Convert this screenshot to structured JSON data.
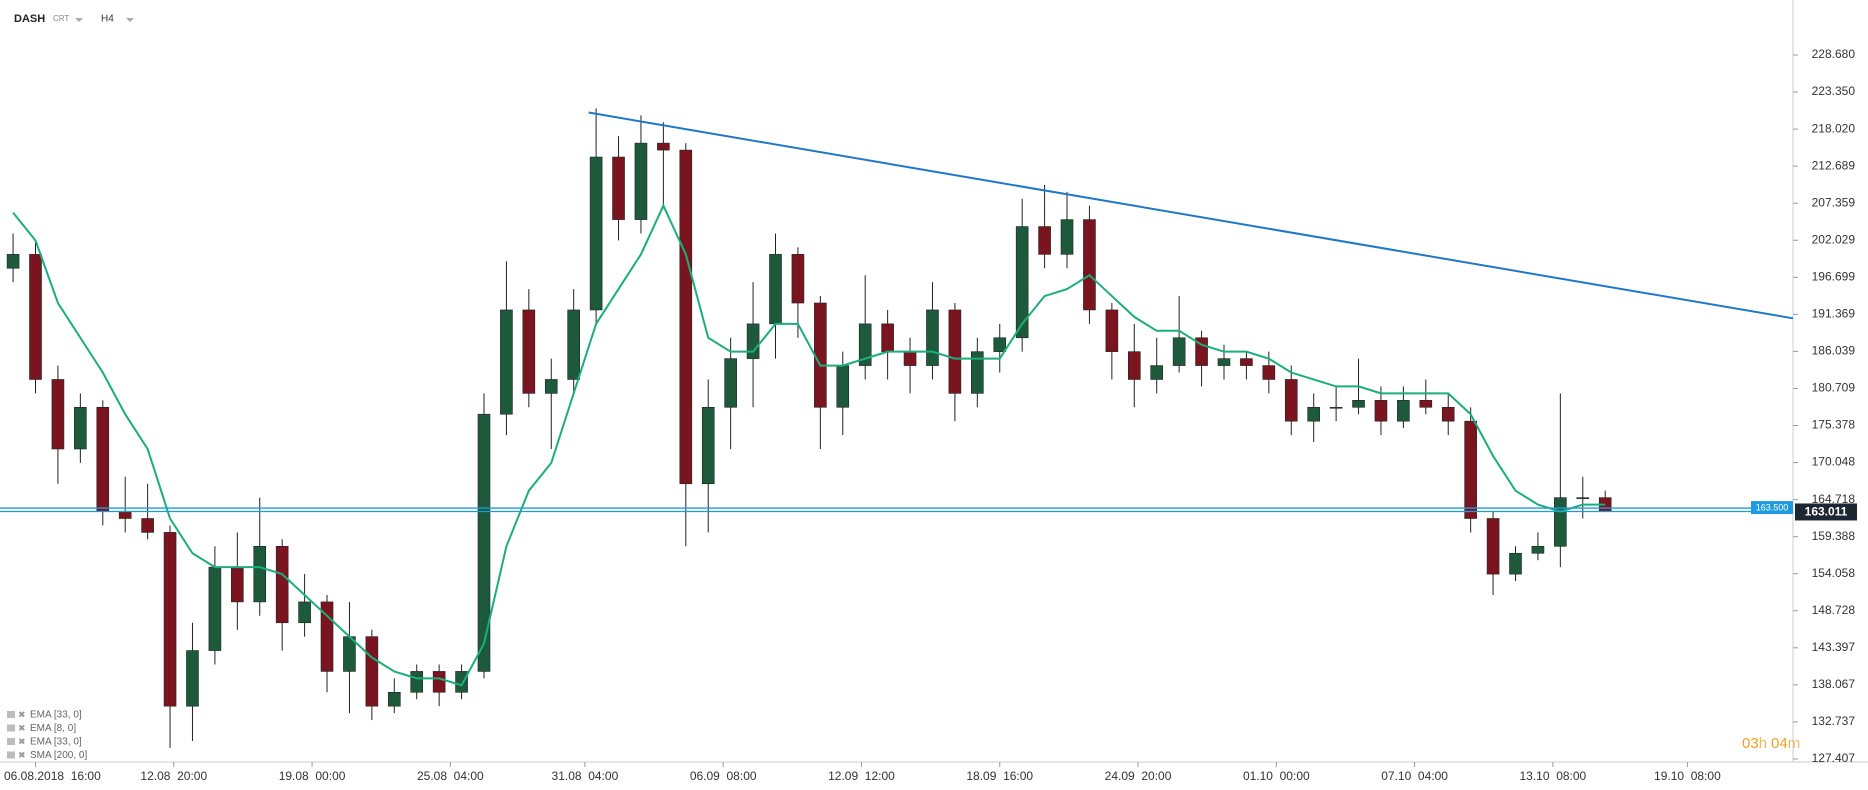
{
  "header": {
    "symbol": "DASH",
    "source": "CRT",
    "timeframe": "H4"
  },
  "chart_data": {
    "type": "candlestick",
    "x": [
      -24,
      0,
      24,
      48,
      72,
      96,
      120,
      144,
      168,
      192,
      216,
      240,
      264,
      288,
      312,
      336,
      360,
      384,
      408,
      432,
      456,
      480,
      504,
      528,
      552,
      576,
      600,
      624,
      648,
      672,
      696,
      720,
      744,
      768,
      792,
      816,
      840,
      864,
      888,
      912,
      936,
      960,
      984,
      1008,
      1032,
      1056,
      1080,
      1104,
      1128,
      1152,
      1176,
      1200,
      1224,
      1248,
      1272,
      1296,
      1320,
      1344,
      1368,
      1392,
      1416,
      1440,
      1464,
      1488,
      1512,
      1536,
      1560,
      1584,
      1608,
      1632,
      1656,
      1680
    ],
    "open": [
      198,
      200,
      182,
      172,
      178,
      163,
      162,
      160,
      135,
      143,
      155,
      150,
      158,
      147,
      150,
      140,
      145,
      135,
      137,
      140,
      137,
      140,
      177,
      192,
      180,
      182,
      192,
      214,
      205,
      216,
      215,
      167,
      178,
      185,
      190,
      200,
      193,
      178,
      184,
      190,
      186,
      184,
      192,
      180,
      186,
      188,
      204,
      200,
      205,
      192,
      186,
      182,
      184,
      188,
      184,
      185,
      184,
      182,
      176,
      178,
      178,
      179,
      176,
      179,
      178,
      176,
      162,
      154,
      157,
      158,
      165,
      165
    ],
    "high": [
      203,
      202,
      184,
      180,
      179,
      168,
      167,
      161,
      147,
      158,
      160,
      165,
      159,
      154,
      151,
      150,
      146,
      139,
      141,
      141,
      141,
      180,
      199,
      195,
      185,
      195,
      221,
      217,
      220,
      219,
      216,
      182,
      188,
      196,
      203,
      201,
      194,
      186,
      197,
      192,
      188,
      196,
      193,
      188,
      190,
      208,
      210,
      209,
      207,
      193,
      190,
      188,
      194,
      189,
      187,
      186,
      186,
      184,
      180,
      181,
      185,
      181,
      181,
      182,
      180,
      178,
      163,
      158,
      160,
      180,
      168,
      166
    ],
    "low": [
      196,
      180,
      167,
      170,
      161,
      160,
      159,
      129,
      130,
      141,
      146,
      148,
      143,
      145,
      137,
      134,
      133,
      134,
      136,
      135,
      136,
      139,
      174,
      178,
      172,
      180,
      190,
      202,
      203,
      207,
      158,
      160,
      172,
      178,
      185,
      188,
      172,
      174,
      182,
      182,
      180,
      182,
      176,
      178,
      183,
      186,
      198,
      198,
      190,
      182,
      178,
      180,
      183,
      181,
      182,
      182,
      180,
      174,
      173,
      176,
      177,
      174,
      175,
      177,
      174,
      160,
      151,
      153,
      156,
      155,
      162,
      163
    ],
    "close": [
      200,
      182,
      172,
      178,
      163,
      162,
      160,
      135,
      143,
      155,
      150,
      158,
      147,
      150,
      140,
      145,
      135,
      137,
      140,
      137,
      140,
      177,
      192,
      180,
      182,
      192,
      214,
      205,
      216,
      215,
      167,
      178,
      185,
      190,
      200,
      193,
      178,
      184,
      190,
      186,
      184,
      192,
      180,
      186,
      188,
      204,
      200,
      205,
      192,
      186,
      182,
      184,
      188,
      184,
      185,
      184,
      182,
      176,
      178,
      178,
      179,
      176,
      179,
      178,
      176,
      162,
      154,
      157,
      158,
      165,
      165,
      163.011
    ],
    "up_color": "#1d5a3c",
    "down_color": "#7a1520",
    "ema": {
      "color": "#1aaf7a",
      "values": [
        206,
        202,
        193,
        188,
        183,
        177,
        172,
        162,
        157,
        155,
        155,
        155,
        154,
        151,
        148,
        145,
        142,
        140,
        139,
        139,
        138,
        144,
        158,
        166,
        170,
        180,
        190,
        195,
        200,
        207,
        200,
        188,
        186,
        186,
        190,
        190,
        184,
        184,
        185,
        186,
        186,
        186,
        185,
        185,
        185,
        190,
        194,
        195,
        197,
        194,
        191,
        189,
        189,
        187,
        186,
        186,
        185,
        183,
        182,
        181,
        181,
        180,
        180,
        180,
        180,
        177,
        171,
        166,
        164,
        163,
        164,
        164
      ]
    },
    "trendline": {
      "color": "#1e78c8",
      "x": [
        592,
        1881
      ],
      "y": [
        220.4,
        190.8
      ]
    },
    "price_level": {
      "value": 163.5,
      "label": "163.500",
      "color": "#1e9be0"
    },
    "last_price": {
      "value": 163.011,
      "label": "163.011"
    },
    "indicators": [
      "EMA [33, 0]",
      "EMA [8, 0]",
      "EMA [33, 0]",
      "SMA [200, 0]"
    ],
    "countdown": [
      "03",
      "h",
      "04",
      "m"
    ],
    "xlim": [
      -38,
      1881
    ],
    "xticks": [
      {
        "value": 0,
        "label": "06.08.2018  16:00"
      },
      {
        "value": 148,
        "label": "12.08  20:00"
      },
      {
        "value": 296,
        "label": "19.08  00:00"
      },
      {
        "value": 444,
        "label": "25.08  04:00"
      },
      {
        "value": 588,
        "label": "31.08  04:00"
      },
      {
        "value": 736,
        "label": "06.09  08:00"
      },
      {
        "value": 884,
        "label": "12.09  12:00"
      },
      {
        "value": 1032,
        "label": "18.09  16:00"
      },
      {
        "value": 1180,
        "label": "24.09  20:00"
      },
      {
        "value": 1328,
        "label": "01.10  00:00"
      },
      {
        "value": 1476,
        "label": "07.10  04:00"
      },
      {
        "value": 1624,
        "label": "13.10  08:00"
      },
      {
        "value": 1768,
        "label": "19.10  08:00"
      }
    ],
    "ylim": [
      126.97,
      236.59
    ],
    "yticks": [
      {
        "value": 228.68,
        "label": "228.680"
      },
      {
        "value": 223.35,
        "label": "223.350"
      },
      {
        "value": 218.02,
        "label": "218.020"
      },
      212.689,
      207.359,
      202.029,
      196.699,
      191.369,
      186.039,
      180.709,
      175.378,
      {
        "value": 170.048,
        "label": "170.048"
      },
      164.718,
      159.388,
      154.058,
      148.728,
      143.397,
      138.067,
      132.737,
      127.407
    ]
  }
}
